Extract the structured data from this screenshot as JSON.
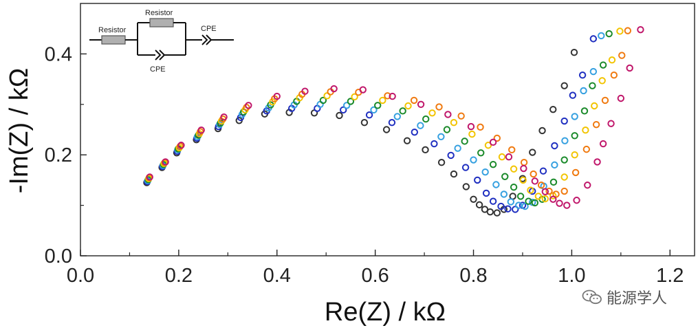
{
  "chart_data": {
    "type": "scatter",
    "title": "",
    "xlabel": "Re(Z) / kΩ",
    "ylabel": "-Im(Z) / kΩ",
    "xlim": [
      0.0,
      1.25
    ],
    "ylim": [
      0.0,
      0.5
    ],
    "xticks": [
      "0.0",
      "0.2",
      "0.4",
      "0.6",
      "0.8",
      "1.0",
      "1.2"
    ],
    "yticks": [
      "0.0",
      "0.2",
      "0.4"
    ],
    "grid": false,
    "legend": "none",
    "marker": "open-circle",
    "series": [
      {
        "color": "#333333",
        "points": [
          [
            0.135,
            0.145
          ],
          [
            0.166,
            0.175
          ],
          [
            0.196,
            0.204
          ],
          [
            0.236,
            0.23
          ],
          [
            0.28,
            0.252
          ],
          [
            0.323,
            0.268
          ],
          [
            0.375,
            0.281
          ],
          [
            0.425,
            0.284
          ],
          [
            0.476,
            0.283
          ],
          [
            0.527,
            0.278
          ],
          [
            0.578,
            0.264
          ],
          [
            0.623,
            0.25
          ],
          [
            0.665,
            0.228
          ],
          [
            0.702,
            0.21
          ],
          [
            0.735,
            0.185
          ],
          [
            0.76,
            0.162
          ],
          [
            0.785,
            0.137
          ],
          [
            0.8,
            0.112
          ],
          [
            0.812,
            0.101
          ],
          [
            0.823,
            0.092
          ],
          [
            0.834,
            0.087
          ],
          [
            0.848,
            0.085
          ],
          [
            0.862,
            0.092
          ],
          [
            0.88,
            0.118
          ],
          [
            0.9,
            0.153
          ],
          [
            0.92,
            0.205
          ],
          [
            0.94,
            0.248
          ],
          [
            0.962,
            0.29
          ],
          [
            0.985,
            0.337
          ],
          [
            1.005,
            0.403
          ]
        ]
      },
      {
        "color": "#1f2fc0",
        "points": [
          [
            0.136,
            0.147
          ],
          [
            0.167,
            0.177
          ],
          [
            0.197,
            0.207
          ],
          [
            0.237,
            0.233
          ],
          [
            0.281,
            0.256
          ],
          [
            0.326,
            0.274
          ],
          [
            0.379,
            0.287
          ],
          [
            0.43,
            0.292
          ],
          [
            0.482,
            0.292
          ],
          [
            0.535,
            0.289
          ],
          [
            0.588,
            0.279
          ],
          [
            0.634,
            0.264
          ],
          [
            0.68,
            0.245
          ],
          [
            0.72,
            0.222
          ],
          [
            0.754,
            0.199
          ],
          [
            0.784,
            0.175
          ],
          [
            0.808,
            0.15
          ],
          [
            0.826,
            0.124
          ],
          [
            0.84,
            0.108
          ],
          [
            0.856,
            0.098
          ],
          [
            0.87,
            0.093
          ],
          [
            0.885,
            0.092
          ],
          [
            0.9,
            0.1
          ],
          [
            0.92,
            0.128
          ],
          [
            0.942,
            0.168
          ],
          [
            0.965,
            0.218
          ],
          [
            0.985,
            0.267
          ],
          [
            1.002,
            0.318
          ],
          [
            1.022,
            0.358
          ],
          [
            1.044,
            0.43
          ]
        ]
      },
      {
        "color": "#35a0e0",
        "points": [
          [
            0.137,
            0.149
          ],
          [
            0.168,
            0.179
          ],
          [
            0.198,
            0.21
          ],
          [
            0.238,
            0.236
          ],
          [
            0.283,
            0.26
          ],
          [
            0.329,
            0.28
          ],
          [
            0.383,
            0.293
          ],
          [
            0.435,
            0.299
          ],
          [
            0.488,
            0.3
          ],
          [
            0.542,
            0.298
          ],
          [
            0.597,
            0.289
          ],
          [
            0.645,
            0.276
          ],
          [
            0.692,
            0.258
          ],
          [
            0.734,
            0.236
          ],
          [
            0.768,
            0.213
          ],
          [
            0.8,
            0.19
          ],
          [
            0.824,
            0.166
          ],
          [
            0.846,
            0.141
          ],
          [
            0.862,
            0.122
          ],
          [
            0.876,
            0.107
          ],
          [
            0.892,
            0.1
          ],
          [
            0.905,
            0.098
          ],
          [
            0.92,
            0.106
          ],
          [
            0.943,
            0.138
          ],
          [
            0.965,
            0.18
          ],
          [
            0.986,
            0.228
          ],
          [
            1.006,
            0.276
          ],
          [
            1.024,
            0.327
          ],
          [
            1.044,
            0.365
          ],
          [
            1.06,
            0.436
          ]
        ]
      },
      {
        "color": "#1a8a2a",
        "points": [
          [
            0.138,
            0.151
          ],
          [
            0.169,
            0.181
          ],
          [
            0.199,
            0.212
          ],
          [
            0.24,
            0.239
          ],
          [
            0.285,
            0.263
          ],
          [
            0.332,
            0.285
          ],
          [
            0.387,
            0.299
          ],
          [
            0.44,
            0.306
          ],
          [
            0.494,
            0.308
          ],
          [
            0.55,
            0.306
          ],
          [
            0.605,
            0.298
          ],
          [
            0.656,
            0.287
          ],
          [
            0.703,
            0.271
          ],
          [
            0.746,
            0.25
          ],
          [
            0.782,
            0.227
          ],
          [
            0.815,
            0.204
          ],
          [
            0.84,
            0.181
          ],
          [
            0.864,
            0.157
          ],
          [
            0.882,
            0.136
          ],
          [
            0.896,
            0.118
          ],
          [
            0.912,
            0.108
          ],
          [
            0.925,
            0.105
          ],
          [
            0.94,
            0.112
          ],
          [
            0.963,
            0.146
          ],
          [
            0.985,
            0.19
          ],
          [
            1.006,
            0.238
          ],
          [
            1.026,
            0.287
          ],
          [
            1.042,
            0.337
          ],
          [
            1.064,
            0.378
          ],
          [
            1.076,
            0.44
          ]
        ]
      },
      {
        "color": "#f2c400",
        "points": [
          [
            0.139,
            0.153
          ],
          [
            0.17,
            0.183
          ],
          [
            0.201,
            0.214
          ],
          [
            0.242,
            0.242
          ],
          [
            0.287,
            0.267
          ],
          [
            0.335,
            0.289
          ],
          [
            0.391,
            0.305
          ],
          [
            0.446,
            0.313
          ],
          [
            0.502,
            0.317
          ],
          [
            0.558,
            0.315
          ],
          [
            0.615,
            0.308
          ],
          [
            0.667,
            0.297
          ],
          [
            0.716,
            0.283
          ],
          [
            0.76,
            0.264
          ],
          [
            0.797,
            0.241
          ],
          [
            0.83,
            0.219
          ],
          [
            0.858,
            0.196
          ],
          [
            0.882,
            0.172
          ],
          [
            0.901,
            0.15
          ],
          [
            0.916,
            0.13
          ],
          [
            0.932,
            0.118
          ],
          [
            0.946,
            0.113
          ],
          [
            0.962,
            0.119
          ],
          [
            0.985,
            0.156
          ],
          [
            1.006,
            0.2
          ],
          [
            1.028,
            0.249
          ],
          [
            1.046,
            0.297
          ],
          [
            1.062,
            0.347
          ],
          [
            1.082,
            0.388
          ],
          [
            1.098,
            0.445
          ]
        ]
      },
      {
        "color": "#f07a10",
        "points": [
          [
            0.14,
            0.155
          ],
          [
            0.172,
            0.185
          ],
          [
            0.203,
            0.217
          ],
          [
            0.244,
            0.246
          ],
          [
            0.29,
            0.271
          ],
          [
            0.338,
            0.294
          ],
          [
            0.395,
            0.311
          ],
          [
            0.451,
            0.32
          ],
          [
            0.509,
            0.325
          ],
          [
            0.566,
            0.324
          ],
          [
            0.625,
            0.317
          ],
          [
            0.679,
            0.308
          ],
          [
            0.73,
            0.295
          ],
          [
            0.775,
            0.277
          ],
          [
            0.814,
            0.255
          ],
          [
            0.848,
            0.233
          ],
          [
            0.878,
            0.21
          ],
          [
            0.903,
            0.185
          ],
          [
            0.922,
            0.162
          ],
          [
            0.938,
            0.14
          ],
          [
            0.954,
            0.128
          ],
          [
            0.968,
            0.122
          ],
          [
            0.985,
            0.128
          ],
          [
            1.008,
            0.165
          ],
          [
            1.03,
            0.211
          ],
          [
            1.05,
            0.26
          ],
          [
            1.068,
            0.308
          ],
          [
            1.086,
            0.358
          ],
          [
            1.102,
            0.397
          ],
          [
            1.114,
            0.446
          ]
        ]
      },
      {
        "color": "#c0166a",
        "points": [
          [
            0.141,
            0.156
          ],
          [
            0.173,
            0.186
          ],
          [
            0.205,
            0.219
          ],
          [
            0.246,
            0.249
          ],
          [
            0.292,
            0.275
          ],
          [
            0.342,
            0.298
          ],
          [
            0.4,
            0.316
          ],
          [
            0.457,
            0.326
          ],
          [
            0.516,
            0.331
          ],
          [
            0.575,
            0.329
          ],
          [
            0.635,
            0.316
          ],
          [
            0.693,
            0.3
          ],
          [
            0.748,
            0.28
          ],
          [
            0.795,
            0.256
          ],
          [
            0.84,
            0.225
          ],
          [
            0.872,
            0.196
          ],
          [
            0.902,
            0.173
          ],
          [
            0.925,
            0.148
          ],
          [
            0.946,
            0.127
          ],
          [
            0.962,
            0.112
          ],
          [
            0.975,
            0.104
          ],
          [
            0.99,
            0.1
          ],
          [
            1.01,
            0.11
          ],
          [
            1.032,
            0.14
          ],
          [
            1.052,
            0.186
          ],
          [
            1.064,
            0.222
          ],
          [
            1.08,
            0.262
          ],
          [
            1.1,
            0.312
          ],
          [
            1.118,
            0.372
          ],
          [
            1.14,
            0.448
          ]
        ]
      }
    ]
  },
  "inset": {
    "resistor_1_label": "Resistor",
    "resistor_2_label": "Resistor",
    "cpe_parallel_label": "CPE",
    "cpe_series_label": "CPE"
  },
  "watermark": {
    "text": "能源学人",
    "icon": "wechat-icon"
  }
}
